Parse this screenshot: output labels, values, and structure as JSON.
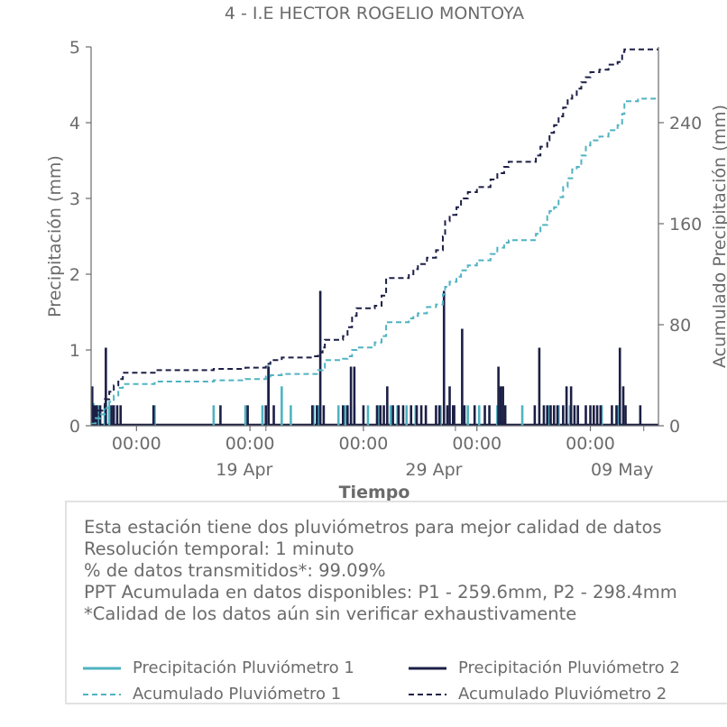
{
  "chart_data": {
    "type": "line",
    "title": "4 - I.E HECTOR ROGELIO MONTOYA",
    "xlabel": "Tiempo",
    "ylabel": "Precipitación (mm)",
    "ylabel_right": "Acumulado Precipitación (mm)",
    "ylim": [
      0,
      5
    ],
    "ylim_right": [
      0,
      300
    ],
    "xlim": [
      0.0,
      25.0
    ],
    "x_ticks": [
      {
        "x": 2,
        "label": "00:00"
      },
      {
        "x": 7,
        "label": "00:00"
      },
      {
        "x": 12,
        "label": "00:00"
      },
      {
        "x": 17,
        "label": "00:00"
      },
      {
        "x": 22,
        "label": "00:00"
      }
    ],
    "x_date_labels": [
      {
        "x": 6.75,
        "label": "19 Apr"
      },
      {
        "x": 15.1,
        "label": "29 Apr"
      },
      {
        "x": 23.4,
        "label": "09 May"
      }
    ],
    "y_ticks": [
      0,
      1,
      2,
      3,
      4,
      5
    ],
    "y_ticks_right": [
      0,
      80,
      160,
      240
    ],
    "grid": false,
    "series": [
      {
        "name": "Precipitación Pluviómetro 1",
        "axis": "left",
        "style": "bar",
        "values": [
          [
            0.1,
            0.3
          ],
          [
            0.3,
            0.27
          ],
          [
            0.6,
            0.27
          ],
          [
            0.8,
            0.27
          ],
          [
            1.0,
            0.27
          ],
          [
            2.8,
            0.27
          ],
          [
            5.4,
            0.27
          ],
          [
            6.8,
            0.27
          ],
          [
            7.55,
            0.27
          ],
          [
            7.8,
            0.8
          ],
          [
            8.4,
            0.52
          ],
          [
            8.8,
            0.27
          ],
          [
            9.8,
            0.27
          ],
          [
            10.05,
            0.27
          ],
          [
            10.9,
            0.27
          ],
          [
            11.2,
            0.27
          ],
          [
            11.6,
            0.27
          ],
          [
            12.2,
            0.27
          ],
          [
            12.7,
            0.27
          ],
          [
            13.2,
            0.27
          ],
          [
            13.5,
            0.27
          ],
          [
            13.9,
            0.27
          ],
          [
            14.3,
            0.27
          ],
          [
            15.4,
            0.27
          ],
          [
            16.6,
            0.27
          ],
          [
            17.1,
            0.27
          ],
          [
            17.9,
            0.27
          ],
          [
            19.0,
            0.27
          ],
          [
            20.2,
            0.27
          ],
          [
            20.6,
            0.27
          ],
          [
            21.1,
            0.27
          ],
          [
            22.5,
            0.27
          ],
          [
            23.2,
            0.27
          ]
        ]
      },
      {
        "name": "Precipitación Pluviómetro 2",
        "axis": "left",
        "style": "bar",
        "values": [
          [
            0.05,
            0.52
          ],
          [
            0.15,
            0.27
          ],
          [
            0.25,
            0.27
          ],
          [
            0.4,
            0.27
          ],
          [
            0.65,
            1.03
          ],
          [
            0.9,
            0.27
          ],
          [
            1.0,
            0.27
          ],
          [
            1.15,
            0.27
          ],
          [
            1.3,
            0.27
          ],
          [
            2.75,
            0.27
          ],
          [
            5.7,
            0.27
          ],
          [
            6.9,
            0.27
          ],
          [
            7.7,
            0.27
          ],
          [
            7.82,
            0.78
          ],
          [
            8.05,
            0.27
          ],
          [
            9.75,
            0.27
          ],
          [
            9.95,
            0.27
          ],
          [
            10.1,
            1.78
          ],
          [
            10.25,
            0.27
          ],
          [
            11.1,
            0.27
          ],
          [
            11.3,
            0.27
          ],
          [
            11.45,
            0.78
          ],
          [
            11.6,
            0.78
          ],
          [
            12.0,
            0.27
          ],
          [
            12.6,
            0.27
          ],
          [
            12.75,
            0.27
          ],
          [
            12.9,
            0.27
          ],
          [
            13.05,
            0.52
          ],
          [
            13.3,
            0.27
          ],
          [
            13.55,
            0.27
          ],
          [
            13.75,
            0.27
          ],
          [
            14.1,
            0.27
          ],
          [
            14.35,
            0.27
          ],
          [
            14.55,
            0.27
          ],
          [
            14.75,
            0.27
          ],
          [
            15.2,
            0.27
          ],
          [
            15.35,
            0.27
          ],
          [
            15.55,
            1.78
          ],
          [
            15.7,
            0.27
          ],
          [
            15.8,
            0.52
          ],
          [
            15.95,
            0.27
          ],
          [
            16.0,
            0.27
          ],
          [
            16.35,
            1.28
          ],
          [
            16.45,
            0.27
          ],
          [
            16.9,
            0.27
          ],
          [
            17.35,
            0.27
          ],
          [
            17.55,
            0.27
          ],
          [
            17.95,
            0.78
          ],
          [
            18.05,
            0.52
          ],
          [
            18.15,
            0.52
          ],
          [
            18.25,
            0.27
          ],
          [
            19.55,
            0.27
          ],
          [
            19.75,
            1.03
          ],
          [
            19.95,
            0.27
          ],
          [
            20.1,
            0.27
          ],
          [
            20.25,
            0.27
          ],
          [
            20.4,
            0.27
          ],
          [
            20.55,
            0.27
          ],
          [
            20.8,
            0.27
          ],
          [
            20.95,
            0.52
          ],
          [
            21.15,
            0.52
          ],
          [
            21.3,
            0.27
          ],
          [
            21.45,
            0.27
          ],
          [
            21.8,
            0.27
          ],
          [
            22.0,
            0.27
          ],
          [
            22.15,
            0.27
          ],
          [
            22.3,
            0.27
          ],
          [
            22.45,
            0.27
          ],
          [
            22.95,
            0.27
          ],
          [
            23.15,
            0.27
          ],
          [
            23.3,
            1.03
          ],
          [
            23.45,
            0.52
          ],
          [
            23.55,
            0.27
          ],
          [
            24.2,
            0.27
          ]
        ]
      },
      {
        "name": "Acumulado Pluviómetro 1",
        "axis": "right",
        "style": "dashed",
        "values": [
          [
            0.0,
            2
          ],
          [
            0.2,
            6
          ],
          [
            0.4,
            9
          ],
          [
            0.6,
            14
          ],
          [
            0.8,
            19
          ],
          [
            1.0,
            24
          ],
          [
            1.2,
            30
          ],
          [
            1.4,
            33
          ],
          [
            2.8,
            35
          ],
          [
            3.0,
            35
          ],
          [
            5.4,
            36
          ],
          [
            6.8,
            37
          ],
          [
            7.5,
            37
          ],
          [
            7.7,
            39
          ],
          [
            7.9,
            40
          ],
          [
            8.4,
            41
          ],
          [
            9.8,
            41
          ],
          [
            10.0,
            44
          ],
          [
            10.2,
            46
          ],
          [
            10.3,
            52
          ],
          [
            11.1,
            53
          ],
          [
            11.3,
            55
          ],
          [
            11.5,
            60
          ],
          [
            11.7,
            62
          ],
          [
            12.5,
            66
          ],
          [
            12.8,
            71
          ],
          [
            13.0,
            82
          ],
          [
            14.0,
            85
          ],
          [
            14.2,
            87
          ],
          [
            14.4,
            89
          ],
          [
            14.8,
            94
          ],
          [
            15.2,
            96
          ],
          [
            15.5,
            104
          ],
          [
            15.6,
            110
          ],
          [
            15.8,
            114
          ],
          [
            16.1,
            118
          ],
          [
            16.3,
            123
          ],
          [
            16.6,
            127
          ],
          [
            17.0,
            131
          ],
          [
            17.6,
            136
          ],
          [
            17.9,
            141
          ],
          [
            18.2,
            145
          ],
          [
            18.4,
            147
          ],
          [
            19.6,
            152
          ],
          [
            19.8,
            159
          ],
          [
            20.1,
            166
          ],
          [
            20.2,
            170
          ],
          [
            20.4,
            173
          ],
          [
            20.6,
            181
          ],
          [
            20.8,
            189
          ],
          [
            21.0,
            196
          ],
          [
            21.2,
            203
          ],
          [
            21.4,
            205
          ],
          [
            21.6,
            214
          ],
          [
            21.8,
            222
          ],
          [
            22.0,
            226
          ],
          [
            22.4,
            229
          ],
          [
            22.8,
            234
          ],
          [
            23.2,
            238
          ],
          [
            23.4,
            247
          ],
          [
            23.5,
            257
          ],
          [
            24.1,
            259
          ],
          [
            25.0,
            259
          ]
        ]
      },
      {
        "name": "Acumulado Pluviómetro 2",
        "axis": "right",
        "style": "dashed",
        "values": [
          [
            0.0,
            3
          ],
          [
            0.1,
            9
          ],
          [
            0.3,
            12
          ],
          [
            0.5,
            12
          ],
          [
            0.6,
            21
          ],
          [
            0.8,
            27
          ],
          [
            1.0,
            32
          ],
          [
            1.2,
            37
          ],
          [
            1.4,
            42
          ],
          [
            2.8,
            44
          ],
          [
            3.0,
            44
          ],
          [
            5.4,
            45
          ],
          [
            6.8,
            46
          ],
          [
            7.5,
            46
          ],
          [
            7.7,
            49
          ],
          [
            7.9,
            52
          ],
          [
            8.4,
            54
          ],
          [
            9.8,
            55
          ],
          [
            10.0,
            58
          ],
          [
            10.2,
            62
          ],
          [
            10.3,
            68
          ],
          [
            11.1,
            71
          ],
          [
            11.3,
            78
          ],
          [
            11.5,
            87
          ],
          [
            11.7,
            93
          ],
          [
            12.5,
            95
          ],
          [
            12.8,
            103
          ],
          [
            13.0,
            117
          ],
          [
            14.0,
            120
          ],
          [
            14.2,
            124
          ],
          [
            14.4,
            128
          ],
          [
            14.8,
            133
          ],
          [
            15.2,
            139
          ],
          [
            15.5,
            150
          ],
          [
            15.6,
            162
          ],
          [
            15.8,
            167
          ],
          [
            16.1,
            173
          ],
          [
            16.3,
            180
          ],
          [
            16.6,
            185
          ],
          [
            17.0,
            189
          ],
          [
            17.6,
            195
          ],
          [
            17.9,
            200
          ],
          [
            18.2,
            205
          ],
          [
            18.4,
            209
          ],
          [
            19.6,
            214
          ],
          [
            19.8,
            221
          ],
          [
            20.1,
            226
          ],
          [
            20.2,
            232
          ],
          [
            20.4,
            238
          ],
          [
            20.6,
            245
          ],
          [
            20.8,
            252
          ],
          [
            21.0,
            259
          ],
          [
            21.2,
            262
          ],
          [
            21.4,
            267
          ],
          [
            21.6,
            272
          ],
          [
            21.8,
            276
          ],
          [
            22.0,
            280
          ],
          [
            22.4,
            282
          ],
          [
            22.8,
            286
          ],
          [
            23.2,
            288
          ],
          [
            23.4,
            296
          ],
          [
            23.5,
            298
          ],
          [
            24.1,
            298
          ],
          [
            25.0,
            298
          ]
        ]
      }
    ],
    "legend": "bottom, inside info box, 2 columns"
  },
  "colors": {
    "p1": "#4fb3c1",
    "p2": "#1c1f45",
    "axis": "#6b6b6b",
    "text": "#6b6b6b",
    "box_border": "#e2e2e2"
  },
  "info": {
    "line1": "Esta estación tiene dos pluviómetros para mejor calidad de datos",
    "line2": "Resolución temporal: 1 minuto",
    "line3": "% de datos transmitidos*: 99.09%",
    "line4": "PPT Acumulada en datos disponibles: P1 - 259.6mm, P2 - 298.4mm",
    "line5": "*Calidad de los datos aún sin verificar exhaustivamente"
  },
  "legend": {
    "p1_precip": "Precipitación Pluviómetro 1",
    "p2_precip": "Precipitación Pluviómetro 2",
    "p1_acum": "Acumulado Pluviómetro 1",
    "p2_acum": "Acumulado Pluviómetro 2"
  }
}
